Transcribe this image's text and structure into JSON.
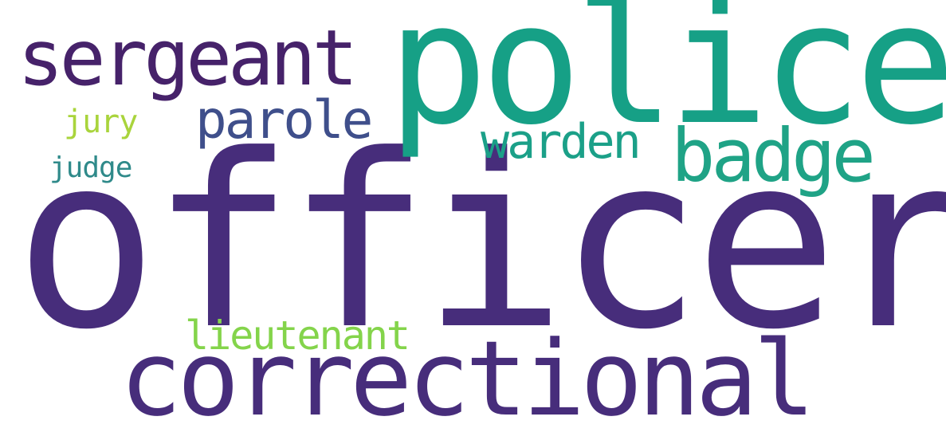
{
  "words": [
    {
      "text": "officer",
      "color": "#472d7b"
    },
    {
      "text": "police",
      "color": "#16a086"
    },
    {
      "text": "correctional",
      "color": "#472d7b"
    },
    {
      "text": "sergeant",
      "color": "#46226a"
    },
    {
      "text": "badge",
      "color": "#1fa386"
    },
    {
      "text": "parole",
      "color": "#3f4f8b"
    },
    {
      "text": "warden",
      "color": "#1ba088"
    },
    {
      "text": "lieutenant",
      "color": "#84d44b"
    },
    {
      "text": "jury",
      "color": "#a9d43c"
    },
    {
      "text": "judge",
      "color": "#2f8a8a"
    }
  ]
}
